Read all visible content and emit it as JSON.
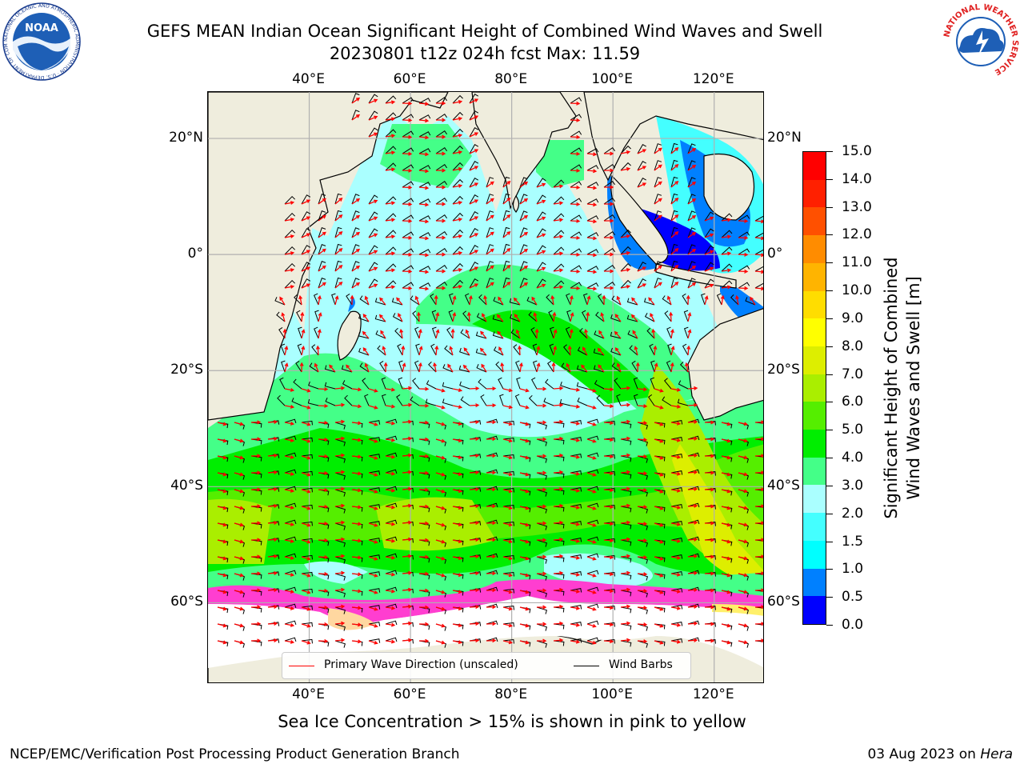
{
  "title": {
    "line1": "GEFS MEAN Indian Ocean Significant Height of Combined Wind Waves and Swell",
    "line2": "20230801 t12z 024h fcst   Max: 11.59"
  },
  "map": {
    "lon_range": [
      20,
      130
    ],
    "lat_range": [
      -74,
      28
    ],
    "lon_ticks": [
      {
        "value": 40,
        "label": "40°E"
      },
      {
        "value": 60,
        "label": "60°E"
      },
      {
        "value": 80,
        "label": "80°E"
      },
      {
        "value": 100,
        "label": "100°E"
      },
      {
        "value": 120,
        "label": "120°E"
      }
    ],
    "lat_ticks": [
      {
        "value": 20,
        "label": "20°N"
      },
      {
        "value": 0,
        "label": "0°"
      },
      {
        "value": -20,
        "label": "20°S"
      },
      {
        "value": -40,
        "label": "40°S"
      },
      {
        "value": -60,
        "label": "60°S"
      }
    ],
    "grid": true,
    "land_color": "#efeddd",
    "ice_colors": [
      "#ff3ed0",
      "#ff9bf5",
      "#ffd7a0",
      "#fff06a"
    ],
    "arrow_color": "#ff0000",
    "barb_color": "#000000"
  },
  "colorbar": {
    "label_line1": "Significant Height of Combined",
    "label_line2": "Wind Waves and Swell [m]",
    "ticks": [
      "0.0",
      "0.5",
      "1.0",
      "1.5",
      "2.0",
      "3.0",
      "4.0",
      "5.0",
      "6.0",
      "7.0",
      "8.0",
      "9.0",
      "10.0",
      "11.0",
      "12.0",
      "13.0",
      "14.0",
      "15.0"
    ],
    "colors": [
      "#0000ff",
      "#0080ff",
      "#00ffff",
      "#44ffff",
      "#aaffff",
      "#44ff88",
      "#00ee00",
      "#55ee00",
      "#aaee00",
      "#ddee00",
      "#ffff00",
      "#ffdd00",
      "#ffb400",
      "#ff8c00",
      "#ff5000",
      "#ff2000",
      "#ff0000"
    ]
  },
  "legend": {
    "wave_label": "Primary Wave Direction (unscaled)",
    "barb_label": "Wind Barbs"
  },
  "subtitle": "Sea Ice Concentration > 15% is shown in pink to yellow",
  "footer": {
    "left": "NCEP/EMC/Verification Post Processing Product Generation Branch",
    "right_date": "03 Aug 2023 on",
    "right_host": "Hera"
  },
  "logos": {
    "noaa": "NOAA",
    "noaa_ring": "NATIONAL OCEANIC AND ATMOSPHERIC ADMINISTRATION · U.S. DEPARTMENT OF COMMERCE ·",
    "nws_ring": "NATIONAL WEATHER SERVICE"
  }
}
